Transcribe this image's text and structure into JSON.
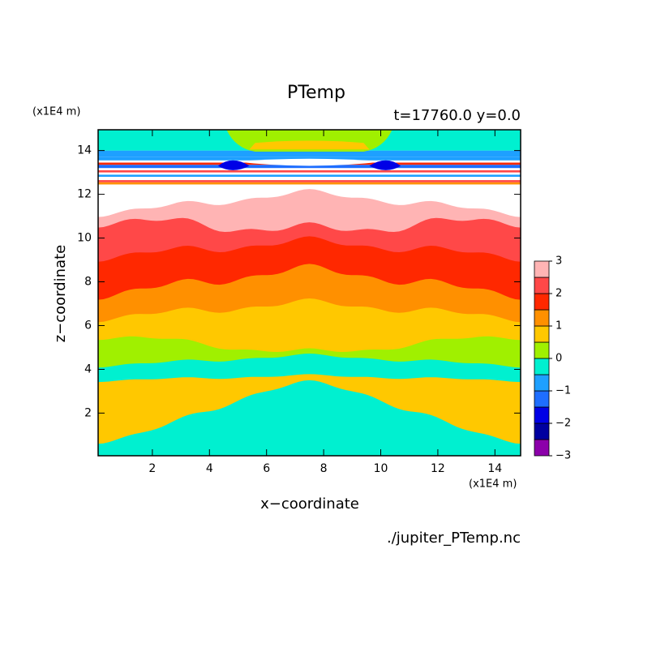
{
  "chart_data": {
    "type": "contour",
    "title": "PTemp",
    "subtitle": "t=17760.0 y=0.0",
    "x_label": "x−coordinate",
    "y_label": "z−coordinate",
    "x_unit": "(x1E4 m)",
    "y_unit": "(x1E4 m)",
    "footnote": "./jupiter_PTemp.nc",
    "xlim": [
      0.1,
      14.9
    ],
    "ylim": [
      0.05,
      14.95
    ],
    "xticks": [
      2,
      4,
      6,
      8,
      10,
      12,
      14
    ],
    "yticks": [
      2,
      4,
      6,
      8,
      10,
      12,
      14
    ],
    "colorbar": {
      "levels": [
        -3,
        -2.5,
        -2,
        -1.5,
        -1,
        -0.5,
        0,
        0.5,
        1,
        1.5,
        2,
        2.5,
        3
      ],
      "colors": [
        "#8c00aa",
        "#0000a0",
        "#0000e6",
        "#1e6eff",
        "#1ea0ff",
        "#00f0d0",
        "#a0f000",
        "#ffc800",
        "#ff9000",
        "#ff2800",
        "#ff4848",
        "#ffb4b4"
      ],
      "ticks": [
        {
          "value": -3,
          "label": "−3"
        },
        {
          "value": -2,
          "label": "−2"
        },
        {
          "value": -1,
          "label": "−1"
        },
        0,
        1,
        2,
        3
      ]
    }
  }
}
